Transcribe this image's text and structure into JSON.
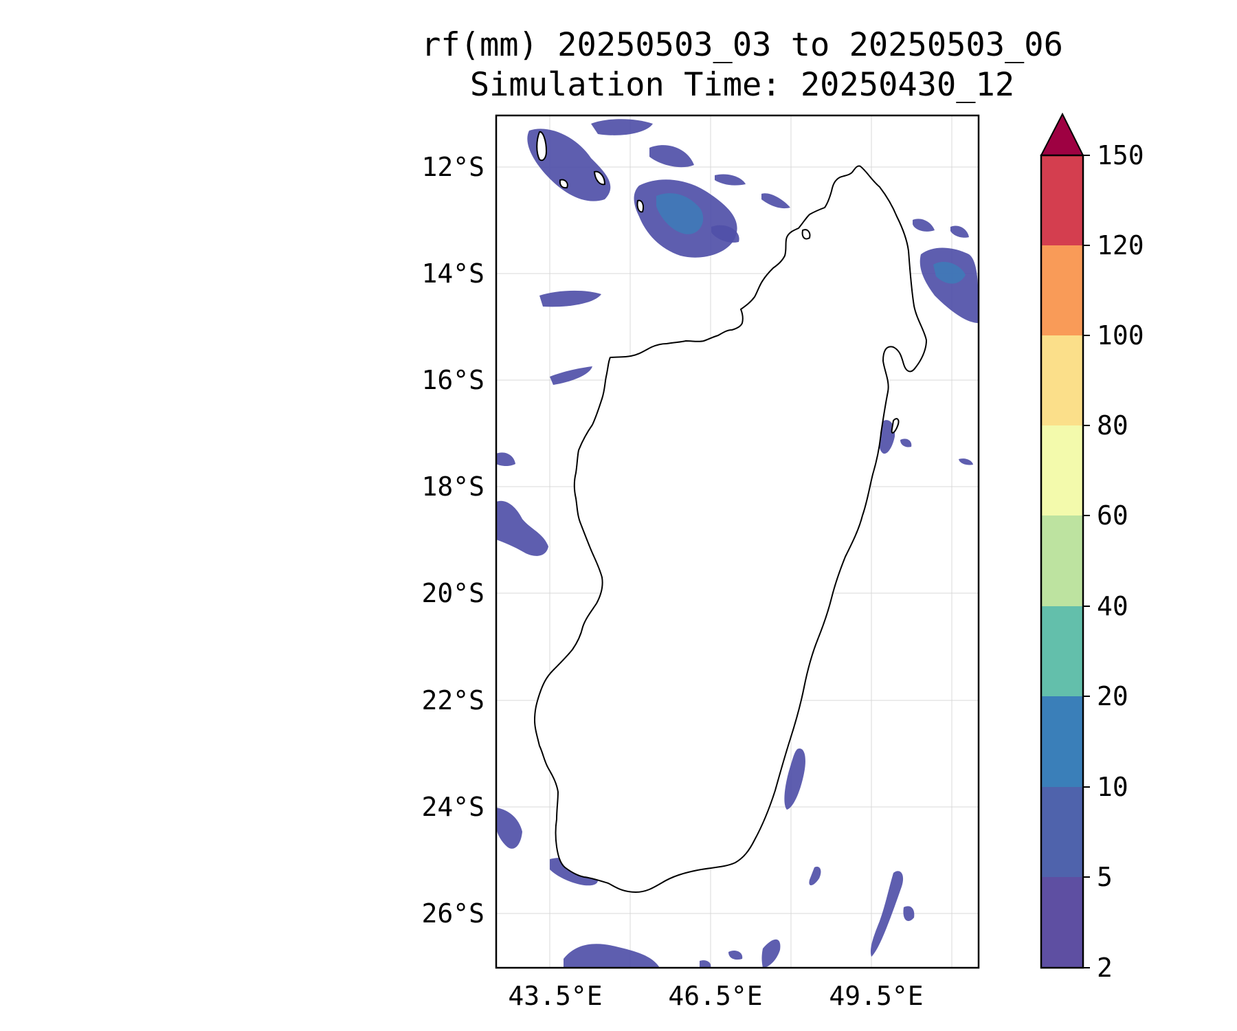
{
  "title": {
    "line1": "rf(mm) 20250503_03 to 20250503_06",
    "line2": "Simulation Time: 20250430_12"
  },
  "map": {
    "lon_range": [
      42.5,
      51.5
    ],
    "lat_range": [
      -27.0,
      -11.0
    ],
    "lat_ticks": [
      "12°S",
      "14°S",
      "16°S",
      "18°S",
      "20°S",
      "22°S",
      "24°S",
      "26°S"
    ],
    "lon_ticks": [
      "43.5°E",
      "46.5°E",
      "49.5°E"
    ],
    "grid": true,
    "field_color": "#5050a8"
  },
  "colorbar": {
    "levels": [
      "2",
      "5",
      "10",
      "20",
      "40",
      "60",
      "80",
      "100",
      "120",
      "150"
    ],
    "colors": [
      "#5e4fa2",
      "#4f63ac",
      "#3a7fb9",
      "#63bfab",
      "#bde3a0",
      "#f3faac",
      "#fbdf8a",
      "#f99b58",
      "#d43e4f"
    ],
    "extend_color": "#9e0142",
    "extend": "max"
  }
}
